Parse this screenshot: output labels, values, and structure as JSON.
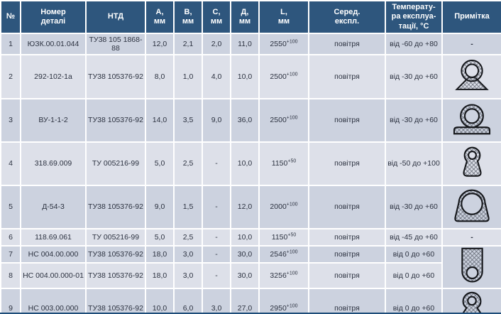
{
  "colors": {
    "header_bg": "#2e567d",
    "row_odd_bg": "#ccd2df",
    "row_even_bg": "#dde0e9",
    "bottom_border": "#1f4e7a",
    "header_text": "#ffffff",
    "cell_text": "#2c3240"
  },
  "table": {
    "columns": [
      {
        "key": "num",
        "label": "№"
      },
      {
        "key": "part",
        "label": "Номер\nдеталі"
      },
      {
        "key": "ntd",
        "label": "НТД"
      },
      {
        "key": "a",
        "label": "А,\nмм"
      },
      {
        "key": "b",
        "label": "В,\nмм"
      },
      {
        "key": "c",
        "label": "С,\nмм"
      },
      {
        "key": "d",
        "label": "Д,\nмм"
      },
      {
        "key": "l",
        "label": "L,\nмм"
      },
      {
        "key": "env",
        "label": "Серед.\nекспл."
      },
      {
        "key": "temp",
        "label": "Температу-\nра експлуа-\nтації, °С"
      },
      {
        "key": "note",
        "label": "Примітка"
      }
    ],
    "rows": [
      {
        "num": "1",
        "part": "ЮЗК.00.01.044",
        "ntd": "ТУ38 105 1868-88",
        "a": "12,0",
        "b": "2,1",
        "c": "2,0",
        "d": "11,0",
        "l": "2550",
        "l_sup": "+100",
        "env": "повітря",
        "temp": "від -60 до +80",
        "note_text": "-"
      },
      {
        "num": "2",
        "part": "292-102-1a",
        "ntd": "ТУ38 105376-92",
        "a": "8,0",
        "b": "1,0",
        "c": "4,0",
        "d": "10,0",
        "l": "2500",
        "l_sup": "+100",
        "env": "повітря",
        "temp": "від -30 до +60",
        "note_icon": "ring-triangle-base-profile-icon"
      },
      {
        "num": "3",
        "part": "ВУ-1-1-2",
        "ntd": "ТУ38 105376-92",
        "a": "14,0",
        "b": "3,5",
        "c": "9,0",
        "d": "36,0",
        "l": "2500",
        "l_sup": "+100",
        "env": "повітря",
        "temp": "від -30 до +60",
        "note_icon": "ring-flat-base-profile-icon"
      },
      {
        "num": "4",
        "part": "318.69.009",
        "ntd": "ТУ 005216-99",
        "a": "5,0",
        "b": "2,5",
        "c": "-",
        "d": "10,0",
        "l": "1150",
        "l_sup": "+50",
        "env": "повітря",
        "temp": "від -50 до +100",
        "note_icon": "keyhole-small-profile-icon"
      },
      {
        "num": "5",
        "part": "Д-54-3",
        "ntd": "ТУ38 105376-92",
        "a": "9,0",
        "b": "1,5",
        "c": "-",
        "d": "12,0",
        "l": "2000",
        "l_sup": "+100",
        "env": "повітря",
        "temp": "від -30 до +60",
        "note_icon": "ring-trapezoid-profile-icon"
      },
      {
        "num": "6",
        "part": "118.69.061",
        "ntd": "ТУ 005216-99",
        "a": "5,0",
        "b": "2,5",
        "c": "-",
        "d": "10,0",
        "l": "1150",
        "l_sup": "+50",
        "env": "повітря",
        "temp": "від -45 до +60",
        "note_text": "-"
      },
      {
        "num": "7",
        "part": "НС 004.00.000",
        "ntd": "ТУ38 105376-92",
        "a": "18,0",
        "b": "3,0",
        "c": "-",
        "d": "30,0",
        "l": "2546",
        "l_sup": "+100",
        "env": "повітря",
        "temp": "від 0 до +60",
        "note_icon": "u-shield-hole-profile-icon",
        "note_rowspan": 2
      },
      {
        "num": "8",
        "part": "НС 004.00.000-01",
        "ntd": "ТУ38 105376-92",
        "a": "18,0",
        "b": "3,0",
        "c": "-",
        "d": "30,0",
        "l": "3256",
        "l_sup": "+100",
        "env": "повітря",
        "temp": "від 0 до +60",
        "note_merged": true
      },
      {
        "num": "9",
        "part": "НС 003.00.000",
        "ntd": "ТУ38 105376-92",
        "a": "10,0",
        "b": "6,0",
        "c": "3,0",
        "d": "27,0",
        "l": "2950",
        "l_sup": "+100",
        "env": "повітря",
        "temp": "від 0 до +60",
        "note_icon": "keyhole-flared-profile-icon"
      }
    ]
  }
}
